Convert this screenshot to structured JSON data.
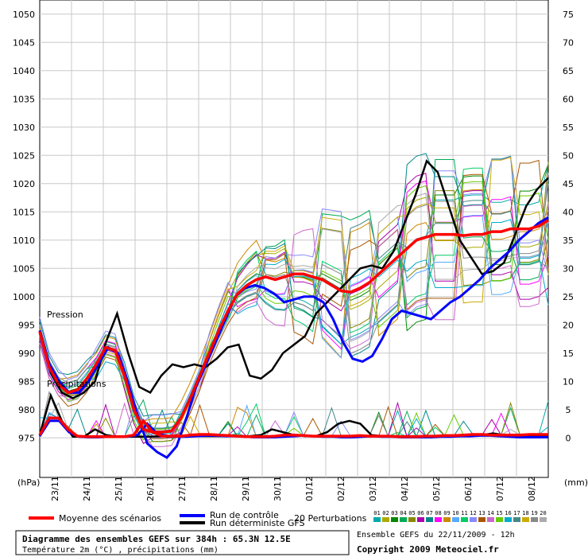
{
  "chart_data": {
    "type": "line",
    "title": "Diagramme des ensembles GEFS sur 384h : 65.3N 12.5E",
    "subtitle": "Température 2m (°C) , précipitations (mm)",
    "left_axis": {
      "unit": "(hPa)",
      "range": [
        970,
        1050
      ],
      "ticks": [
        975,
        980,
        985,
        990,
        995,
        1000,
        1005,
        1010,
        1015,
        1020,
        1025,
        1030,
        1035,
        1040,
        1045,
        1050
      ]
    },
    "right_axis": {
      "unit": "(mm)",
      "range": [
        -5,
        75
      ],
      "ticks": [
        0,
        5,
        10,
        15,
        20,
        25,
        30,
        35,
        40,
        45,
        50,
        55,
        60,
        65,
        70,
        75
      ]
    },
    "x_ticks": [
      "23/11",
      "24/11",
      "25/11",
      "26/11",
      "27/11",
      "28/11",
      "29/11",
      "30/11",
      "01/12",
      "02/12",
      "03/12",
      "04/12",
      "05/12",
      "06/12",
      "07/12",
      "08/12"
    ],
    "annotations": {
      "pression": "Pression",
      "precipitations": "Précipitations"
    },
    "grid": true,
    "series": [
      {
        "name": "Moyenne des scénarios",
        "color": "#ff0000",
        "pressure": [
          993.8,
          987.5,
          984.5,
          983.0,
          983.5,
          985.5,
          988.0,
          991.0,
          990.5,
          986.0,
          980.0,
          976.5,
          976.0,
          976.0,
          976.2,
          978.5,
          982.0,
          986.0,
          990.0,
          994.0,
          997.5,
          1000.5,
          1002.0,
          1003.0,
          1003.5,
          1003.0,
          1003.5,
          1004.0,
          1004.0,
          1003.5,
          1003.0,
          1002.0,
          1001.0,
          1000.8,
          1001.5,
          1002.5,
          1004.0,
          1005.5,
          1007.0,
          1008.5,
          1010.0,
          1010.5,
          1011.0,
          1011.0,
          1011.0,
          1010.8,
          1011.0,
          1011.0,
          1011.5,
          1011.5,
          1012.0,
          1012.0,
          1012.0,
          1012.5,
          1013.5
        ],
        "precip": [
          0.5,
          3.5,
          3.5,
          1.5,
          0.3,
          0.2,
          0.2,
          0.2,
          0.2,
          0.2,
          0.5,
          3.0,
          1.0,
          0.3,
          0.3,
          0.3,
          0.5,
          0.6,
          0.6,
          0.5,
          0.4,
          0.3,
          0.2,
          0.2,
          0.2,
          0.3,
          0.5,
          0.5,
          0.4,
          0.3,
          0.3,
          0.3,
          0.3,
          0.3,
          0.4,
          0.3,
          0.3,
          0.3,
          0.2,
          0.2,
          0.2,
          0.3,
          0.3,
          0.4,
          0.4,
          0.5,
          0.6,
          0.6,
          0.5,
          0.5,
          0.5,
          0.5,
          0.6,
          0.6,
          0.6
        ]
      },
      {
        "name": "Run de contrôle",
        "color": "#0000ff",
        "pressure": [
          994.0,
          988.0,
          985.0,
          983.0,
          983.0,
          985.0,
          988.0,
          991.0,
          990.0,
          985.0,
          979.0,
          974.0,
          972.5,
          971.5,
          973.5,
          978.5,
          984.0,
          988.0,
          992.0,
          996.0,
          1000.0,
          1001.5,
          1002.0,
          1001.5,
          1000.5,
          999.0,
          999.5,
          1000.0,
          1000.0,
          999.0,
          996.0,
          992.0,
          989.0,
          988.5,
          989.5,
          992.5,
          996.0,
          997.5,
          997.0,
          996.5,
          996.0,
          997.5,
          999.0,
          1000.0,
          1001.5,
          1003.0,
          1005.0,
          1006.5,
          1008.0,
          1010.0,
          1011.5,
          1013.0,
          1014.0
        ],
        "precip": [
          0.3,
          3.0,
          3.0,
          1.0,
          0.2,
          0.1,
          0.1,
          0.2,
          0.2,
          0.2,
          0.5,
          2.5,
          0.8,
          0.2,
          0.2,
          0.2,
          0.3,
          0.4,
          0.4,
          0.3,
          0.3,
          0.2,
          0.1,
          0.1,
          0.1,
          0.2,
          0.3,
          0.4,
          0.3,
          0.2,
          0.2,
          0.1,
          0.1,
          0.2,
          0.3,
          0.2,
          0.2,
          0.1,
          0.1,
          0.1,
          0.1,
          0.2,
          0.2,
          0.3,
          0.3,
          0.4,
          0.4,
          0.3,
          0.2,
          0.1,
          0.1,
          0.1,
          0.1
        ]
      },
      {
        "name": "Run déterministe GFS",
        "color": "#000000",
        "pressure": [
          993.5,
          986.5,
          983.0,
          982.0,
          983.0,
          985.0,
          992.0,
          997.0,
          990.0,
          984.0,
          983.0,
          986.0,
          988.0,
          987.5,
          988.0,
          987.5,
          989.0,
          991.0,
          991.5,
          986.0,
          985.5,
          987.0,
          990.0,
          991.5,
          993.0,
          997.0,
          999.0,
          1001.0,
          1003.0,
          1005.0,
          1005.5,
          1005.0,
          1008.0,
          1013.0,
          1018.0,
          1024.0,
          1022.0,
          1016.0,
          1010.0,
          1007.0,
          1004.0,
          1004.5,
          1006.0,
          1011.0,
          1016.0,
          1019.0,
          1021.0
        ],
        "precip": [
          0.5,
          7.5,
          3.0,
          0.2,
          0.2,
          1.5,
          0.5,
          0.2,
          0.2,
          0.2,
          0.2,
          0.3,
          0.3,
          0.3,
          0.3,
          0.3,
          0.3,
          0.3,
          0.3,
          0.3,
          0.5,
          1.5,
          1.0,
          0.5,
          0.3,
          0.3,
          1.0,
          2.5,
          3.0,
          2.5,
          0.5,
          0.3,
          0.3,
          0.3,
          0.3,
          0.3,
          0.3,
          0.3,
          0.3,
          0.3,
          0.5,
          0.8,
          0.5,
          0.3,
          0.3,
          0.3,
          0.3
        ]
      }
    ],
    "perturbations": {
      "label": "20 Perturbations",
      "ids": [
        "01",
        "02",
        "03",
        "04",
        "05",
        "06",
        "07",
        "08",
        "09",
        "10",
        "11",
        "12",
        "13",
        "14",
        "15",
        "16",
        "17",
        "18",
        "19",
        "20"
      ],
      "colors": [
        "#00aaaa",
        "#aaaa00",
        "#008800",
        "#00aa55",
        "#888800",
        "#aa00aa",
        "#008888",
        "#ff00ff",
        "#cc8800",
        "#55aaff",
        "#00cc66",
        "#8888ff",
        "#aa5500",
        "#cc66cc",
        "#66cc00",
        "#00aacc",
        "#448888",
        "#ccaa00",
        "#888888",
        "#aaaaaa"
      ]
    }
  },
  "footer": {
    "legend_mean": "Moyenne des scénarios",
    "legend_control": "Run de contrôle",
    "legend_det": "Run déterministe GFS",
    "legend_pert": "20 Perturbations",
    "title": "Diagramme des ensembles GEFS sur 384h : 65.3N 12.5E",
    "subtitle": "Température 2m (°C) , précipitations (mm)",
    "run_info": "Ensemble GEFS du 22/11/2009 - 12h",
    "copyright": "Copyright 2009 Meteociel.fr"
  }
}
